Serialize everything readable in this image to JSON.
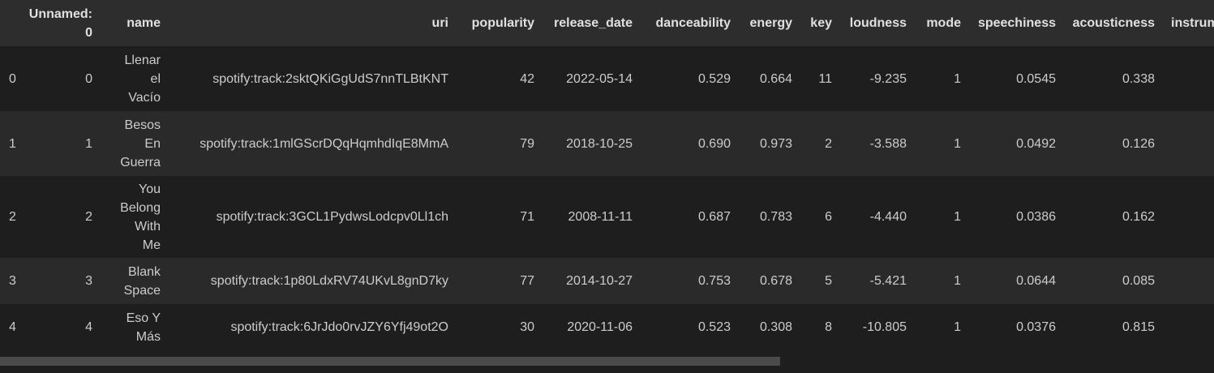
{
  "columns": {
    "index": "",
    "unnamed": "Unnamed: 0",
    "name": "name",
    "uri": "uri",
    "popularity": "popularity",
    "release_date": "release_date",
    "danceability": "danceability",
    "energy": "energy",
    "key": "key",
    "loudness": "loudness",
    "mode": "mode",
    "speechiness": "speechiness",
    "acousticness": "acousticness",
    "instrumentalness": "instrum"
  },
  "rows": [
    {
      "index": "0",
      "unnamed": "0",
      "name": "Llenar el Vacío",
      "uri": "spotify:track:2sktQKiGgUdS7nnTLBtKNT",
      "popularity": "42",
      "release_date": "2022-05-14",
      "danceability": "0.529",
      "energy": "0.664",
      "key": "11",
      "loudness": "-9.235",
      "mode": "1",
      "speechiness": "0.0545",
      "acousticness": "0.338",
      "instrumentalness": ""
    },
    {
      "index": "1",
      "unnamed": "1",
      "name": "Besos En Guerra",
      "uri": "spotify:track:1mlGScrDQqHqmhdIqE8MmA",
      "popularity": "79",
      "release_date": "2018-10-25",
      "danceability": "0.690",
      "energy": "0.973",
      "key": "2",
      "loudness": "-3.588",
      "mode": "1",
      "speechiness": "0.0492",
      "acousticness": "0.126",
      "instrumentalness": ""
    },
    {
      "index": "2",
      "unnamed": "2",
      "name": "You Belong With Me",
      "uri": "spotify:track:3GCL1PydwsLodcpv0Ll1ch",
      "popularity": "71",
      "release_date": "2008-11-11",
      "danceability": "0.687",
      "energy": "0.783",
      "key": "6",
      "loudness": "-4.440",
      "mode": "1",
      "speechiness": "0.0386",
      "acousticness": "0.162",
      "instrumentalness": ""
    },
    {
      "index": "3",
      "unnamed": "3",
      "name": "Blank Space",
      "uri": "spotify:track:1p80LdxRV74UKvL8gnD7ky",
      "popularity": "77",
      "release_date": "2014-10-27",
      "danceability": "0.753",
      "energy": "0.678",
      "key": "5",
      "loudness": "-5.421",
      "mode": "1",
      "speechiness": "0.0644",
      "acousticness": "0.085",
      "instrumentalness": ""
    },
    {
      "index": "4",
      "unnamed": "4",
      "name": "Eso Y Más",
      "uri": "spotify:track:6JrJdo0rvJZY6Yfj49ot2O",
      "popularity": "30",
      "release_date": "2020-11-06",
      "danceability": "0.523",
      "energy": "0.308",
      "key": "8",
      "loudness": "-10.805",
      "mode": "1",
      "speechiness": "0.0376",
      "acousticness": "0.815",
      "instrumentalness": ""
    }
  ]
}
